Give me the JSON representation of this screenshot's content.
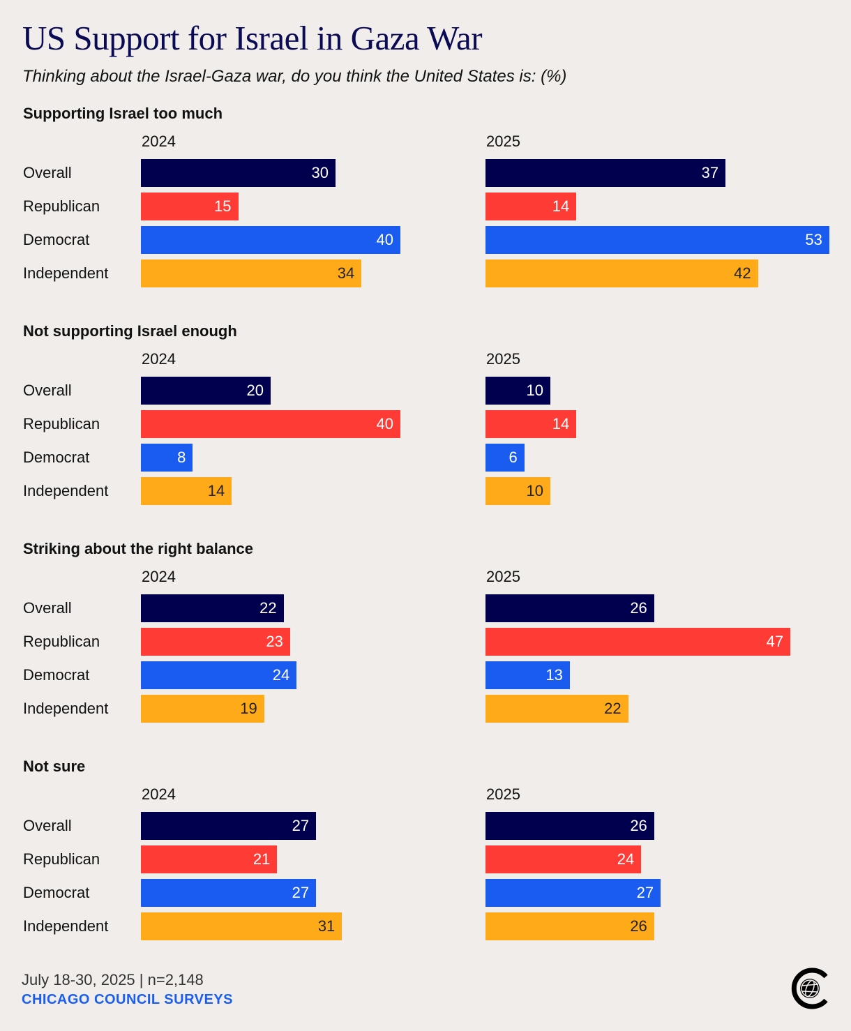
{
  "chart_data": {
    "type": "bar",
    "title": "US Support for Israel in Gaza War",
    "subtitle": "Thinking about the Israel-Gaza war, do you think the United States is: (%)",
    "years": [
      "2024",
      "2025"
    ],
    "categories": [
      "Overall",
      "Republican",
      "Democrat",
      "Independent"
    ],
    "colors": {
      "Overall": "#00004f",
      "Republican": "#ff3b36",
      "Democrat": "#1a5cf0",
      "Independent": "#ffab19"
    },
    "panels": [
      {
        "title": "Supporting Israel too much",
        "values": {
          "2024": [
            30,
            15,
            40,
            34
          ],
          "2025": [
            37,
            14,
            53,
            42
          ]
        }
      },
      {
        "title": "Not supporting Israel enough",
        "values": {
          "2024": [
            20,
            40,
            8,
            14
          ],
          "2025": [
            10,
            14,
            6,
            10
          ]
        }
      },
      {
        "title": "Striking about the right balance",
        "values": {
          "2024": [
            22,
            23,
            24,
            19
          ],
          "2025": [
            26,
            47,
            13,
            22
          ]
        }
      },
      {
        "title": "Not sure",
        "values": {
          "2024": [
            27,
            21,
            27,
            31
          ],
          "2025": [
            26,
            24,
            27,
            26
          ]
        }
      }
    ],
    "xlim": [
      0,
      53
    ]
  },
  "footer": {
    "source": "July 18-30, 2025 | n=2,148",
    "brand": "CHICAGO COUNCIL SURVEYS"
  },
  "logo": {
    "icon": "chicago-council-globe-logo"
  }
}
